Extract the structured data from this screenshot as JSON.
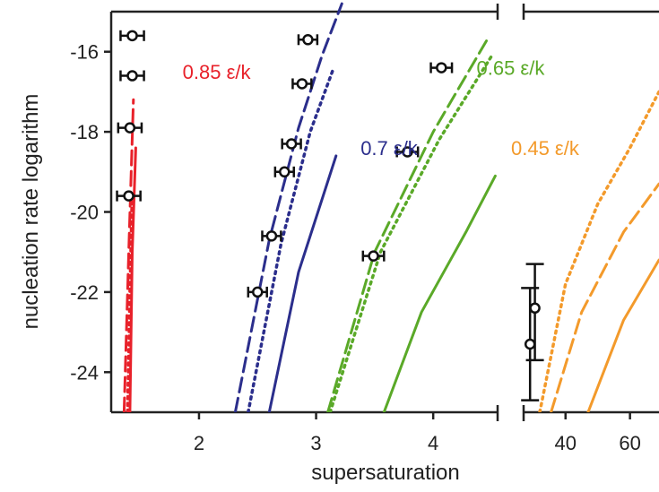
{
  "chart_data": {
    "type": "line",
    "xlabel": "supersaturation",
    "ylabel": "nucleation rate logarithm",
    "ylim": [
      -25,
      -15
    ],
    "yticks": [
      -16,
      -18,
      -20,
      -22,
      -24
    ],
    "ytick_labels": [
      "-16",
      "-18",
      "-20",
      "-22",
      "-24"
    ],
    "x_axis_broken": true,
    "panels": [
      {
        "id": "left",
        "xlim": [
          1.25,
          4.55
        ],
        "xticks": [
          2,
          3,
          4
        ],
        "xtick_labels": [
          "2",
          "3",
          "4"
        ]
      },
      {
        "id": "right",
        "xlim": [
          27,
          69
        ],
        "xticks": [
          40,
          60
        ],
        "xtick_labels": [
          "40",
          "60"
        ]
      }
    ],
    "line_styles_legend": [
      "solid",
      "dashed",
      "dotted"
    ],
    "series": [
      {
        "name": "0.85 ε/k",
        "label_text": "0.85 ε/k",
        "color": "#e8212a",
        "panel": "left",
        "solid": {
          "x": [
            1.41,
            1.43,
            1.46
          ],
          "y": [
            -25,
            -21,
            -18.4
          ]
        },
        "dashed": {
          "x": [
            1.36,
            1.4,
            1.44
          ],
          "y": [
            -25,
            -21,
            -17.2
          ]
        },
        "dotted": {
          "x": [
            1.39,
            1.41,
            1.43
          ],
          "y": [
            -25,
            -22,
            -19.5
          ]
        },
        "points": [
          {
            "x": 1.43,
            "y": -15.6,
            "xerr": 0.1
          },
          {
            "x": 1.43,
            "y": -16.6,
            "xerr": 0.1
          },
          {
            "x": 1.41,
            "y": -17.9,
            "xerr": 0.1
          },
          {
            "x": 1.4,
            "y": -19.6,
            "xerr": 0.1
          }
        ]
      },
      {
        "name": "0.7 ε/k",
        "label_text": "0.7 ε/k",
        "color": "#2b2e8c",
        "panel": "left",
        "solid": {
          "x": [
            2.6,
            2.85,
            3.17
          ],
          "y": [
            -25,
            -21.5,
            -18.6
          ]
        },
        "dashed": {
          "x": [
            2.31,
            2.6,
            2.85,
            3.05,
            3.22
          ],
          "y": [
            -25,
            -20.7,
            -17.9,
            -16.1,
            -14.8
          ]
        },
        "dotted": {
          "x": [
            2.42,
            2.7,
            2.95,
            3.15
          ],
          "y": [
            -25,
            -20.8,
            -18.0,
            -16.4
          ]
        },
        "points": [
          {
            "x": 2.93,
            "y": -15.7,
            "xerr": 0.08
          },
          {
            "x": 2.88,
            "y": -16.8,
            "xerr": 0.08
          },
          {
            "x": 2.79,
            "y": -18.3,
            "xerr": 0.08
          },
          {
            "x": 2.73,
            "y": -19.0,
            "xerr": 0.08
          },
          {
            "x": 2.62,
            "y": -20.6,
            "xerr": 0.08
          },
          {
            "x": 2.5,
            "y": -22.0,
            "xerr": 0.08
          }
        ]
      },
      {
        "name": "0.65 ε/k",
        "label_text": "0.65 ε/k",
        "color": "#5aa928",
        "panel": "left",
        "solid": {
          "x": [
            3.58,
            3.9,
            4.28,
            4.53
          ],
          "y": [
            -25,
            -22.5,
            -20.5,
            -19.1
          ]
        },
        "dashed": {
          "x": [
            3.1,
            3.5,
            4.0,
            4.48
          ],
          "y": [
            -25,
            -21.0,
            -18.0,
            -15.6
          ]
        },
        "dotted": {
          "x": [
            3.12,
            3.55,
            4.05,
            4.5
          ],
          "y": [
            -25,
            -21.0,
            -18.2,
            -16.1
          ]
        },
        "points": [
          {
            "x": 4.07,
            "y": -16.4,
            "xerr": 0.09
          },
          {
            "x": 3.78,
            "y": -18.5,
            "xerr": 0.09
          },
          {
            "x": 3.49,
            "y": -21.1,
            "xerr": 0.09
          }
        ]
      },
      {
        "name": "0.45 ε/k",
        "label_text": "0.45 ε/k",
        "color": "#f39a2b",
        "panel": "right",
        "solid": {
          "x": [
            47,
            58,
            69
          ],
          "y": [
            -25,
            -22.7,
            -21.2
          ]
        },
        "dashed": {
          "x": [
            35.5,
            45,
            58,
            69
          ],
          "y": [
            -25,
            -22.5,
            -20.5,
            -19.3
          ]
        },
        "dotted": {
          "x": [
            32.0,
            40,
            50,
            60,
            69
          ],
          "y": [
            -25,
            -21.8,
            -19.8,
            -18.4,
            -17.0
          ]
        },
        "points": [
          {
            "x": 30.5,
            "y": -22.4,
            "yerr_lower": 1.3,
            "yerr_upper": 1.1
          },
          {
            "x": 29.0,
            "y": -23.3,
            "yerr_lower": 1.4,
            "yerr_upper": 1.4
          }
        ]
      }
    ]
  }
}
